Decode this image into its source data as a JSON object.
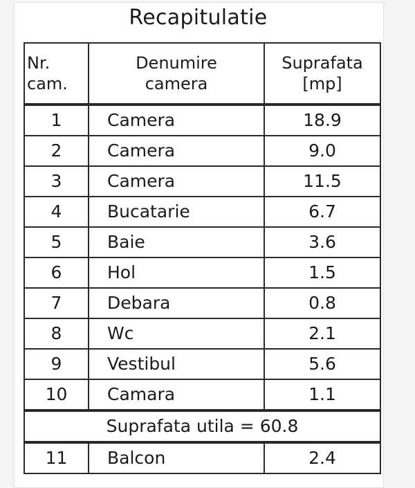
{
  "title": "Recapitulatie",
  "headers": {
    "nr": [
      "Nr.",
      "cam."
    ],
    "name": [
      "Denumire",
      "camera"
    ],
    "area": [
      "Suprafata",
      "[mp]"
    ]
  },
  "rows": [
    {
      "nr": "1",
      "name": "Camera",
      "area": "18.9"
    },
    {
      "nr": "2",
      "name": "Camera",
      "area": "9.0"
    },
    {
      "nr": "3",
      "name": "Camera",
      "area": "11.5"
    },
    {
      "nr": "4",
      "name": "Bucatarie",
      "area": "6.7"
    },
    {
      "nr": "5",
      "name": "Baie",
      "area": "3.6"
    },
    {
      "nr": "6",
      "name": "Hol",
      "area": "1.5"
    },
    {
      "nr": "7",
      "name": "Debara",
      "area": "0.8"
    },
    {
      "nr": "8",
      "name": "Wc",
      "area": "2.1"
    },
    {
      "nr": "9",
      "name": "Vestibul",
      "area": "5.6"
    },
    {
      "nr": "10",
      "name": "Camara",
      "area": "1.1"
    }
  ],
  "summary": "Suprafata utila = 60.8",
  "extra_rows": [
    {
      "nr": "11",
      "name": "Balcon",
      "area": "2.4"
    }
  ]
}
